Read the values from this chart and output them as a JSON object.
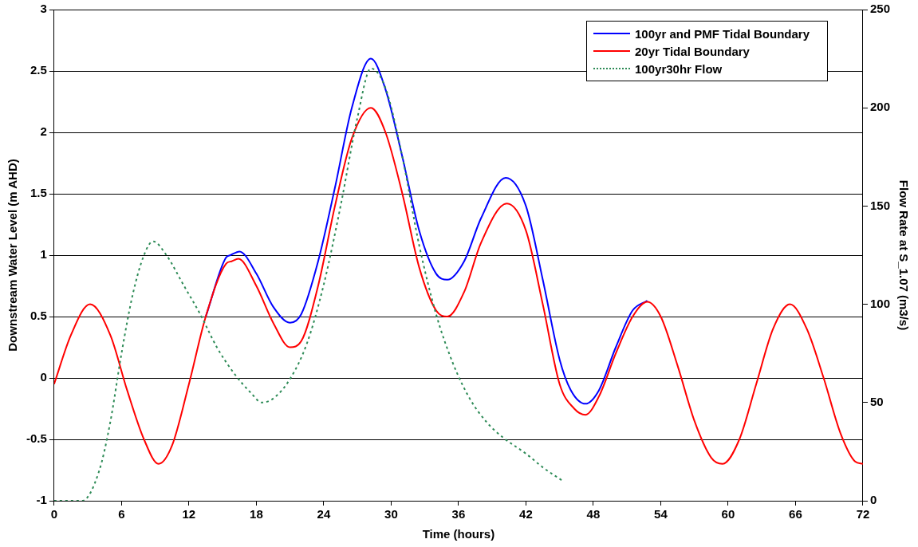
{
  "chart_data": {
    "type": "line",
    "xlabel": "Time (hours)",
    "ylabel": "Downstream Water Level (m AHD)",
    "y2label": "Flow Rate at S_1.07 (m3/s)",
    "xlim": [
      0,
      72
    ],
    "xticks": [
      0,
      6,
      12,
      18,
      24,
      30,
      36,
      42,
      48,
      54,
      60,
      66,
      72
    ],
    "ylim": [
      -1,
      3
    ],
    "yticks": [
      -1,
      -0.5,
      0,
      0.5,
      1,
      1.5,
      2,
      2.5,
      3
    ],
    "y2lim": [
      0,
      250
    ],
    "y2ticks": [
      0,
      50,
      100,
      150,
      200,
      250
    ],
    "grid": "y",
    "legend": "top right",
    "marker": "none",
    "series": [
      {
        "name": "100yr and PMF Tidal Boundary",
        "color": "#0000ff",
        "line_style": "solid",
        "x": [
          13.5,
          15.3,
          15.7,
          16.5,
          18,
          19.5,
          21,
          22,
          23.5,
          25,
          26.5,
          28.2,
          29.5,
          31,
          32.5,
          34,
          35,
          36.5,
          38,
          40.2,
          42,
          43.5,
          45,
          46,
          47.3,
          48.5,
          50,
          51.5,
          52.8
        ],
        "values": [
          0.5,
          0.98,
          1.0,
          1.03,
          0.85,
          0.58,
          0.45,
          0.52,
          0.95,
          1.55,
          2.2,
          2.6,
          2.35,
          1.8,
          1.2,
          0.85,
          0.8,
          0.95,
          1.3,
          1.63,
          1.4,
          0.8,
          0.15,
          -0.1,
          -0.21,
          -0.1,
          0.25,
          0.55,
          0.63
        ]
      },
      {
        "name": "20yr Tidal Boundary",
        "color": "#ff0000",
        "line_style": "solid",
        "x": [
          0,
          1.5,
          3.2,
          5,
          6.5,
          8,
          9.3,
          10.5,
          12,
          13.5,
          15.3,
          15.8,
          16.4,
          18,
          19.5,
          21,
          22,
          23.5,
          25,
          26.5,
          28.2,
          29.5,
          31,
          32.5,
          34,
          35,
          36.5,
          38,
          40.3,
          42,
          43.5,
          45,
          46.3,
          47.3,
          48.5,
          50,
          51.5,
          52.8,
          54,
          55.5,
          57,
          58.5,
          59.5,
          61,
          62.5,
          64,
          65.5,
          67,
          68.5,
          70,
          71.3,
          72
        ],
        "values": [
          -0.05,
          0.35,
          0.6,
          0.35,
          -0.1,
          -0.5,
          -0.7,
          -0.55,
          -0.05,
          0.5,
          0.93,
          0.95,
          0.97,
          0.75,
          0.45,
          0.25,
          0.3,
          0.75,
          1.4,
          1.95,
          2.2,
          2.0,
          1.5,
          0.9,
          0.55,
          0.5,
          0.7,
          1.1,
          1.42,
          1.2,
          0.6,
          -0.05,
          -0.25,
          -0.3,
          -0.15,
          0.2,
          0.5,
          0.62,
          0.5,
          0.1,
          -0.35,
          -0.65,
          -0.7,
          -0.5,
          -0.05,
          0.4,
          0.6,
          0.4,
          0,
          -0.45,
          -0.68,
          -0.7
        ]
      },
      {
        "name": "100yr30hr Flow",
        "color": "#2e8b57",
        "line_style": "dotted",
        "axis": "y2",
        "x": [
          0,
          2.5,
          4,
          5,
          6,
          7,
          8,
          8.8,
          10,
          11.5,
          13,
          14.5,
          16,
          17.5,
          18.5,
          19.5,
          21,
          22.5,
          24,
          25.5,
          27,
          28.2,
          29.5,
          31,
          32.5,
          34,
          35.5,
          37,
          38.5,
          40,
          42,
          43.5,
          45.3
        ],
        "values": [
          0,
          0,
          15,
          40,
          75,
          105,
          125,
          132,
          125,
          110,
          95,
          78,
          65,
          55,
          50,
          52,
          62,
          80,
          110,
          150,
          195,
          220,
          210,
          175,
          130,
          95,
          70,
          52,
          40,
          32,
          24,
          17,
          10
        ]
      }
    ]
  }
}
